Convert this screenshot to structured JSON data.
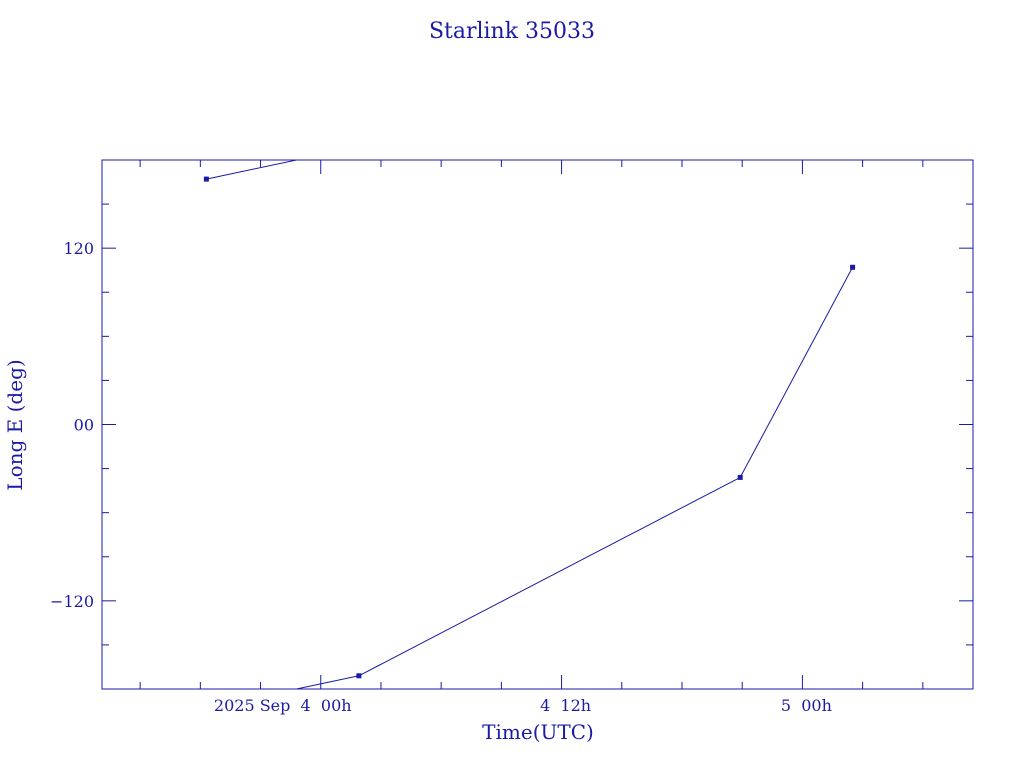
{
  "chart_data": {
    "type": "line",
    "title": "Starlink 35033",
    "xlabel": "Time(UTC)",
    "ylabel": "Long E (deg)",
    "x_tick_labels": [
      "2025 Sep  4  00h",
      "4  12h",
      "5  00h"
    ],
    "x_ticks_hours": [
      0,
      12,
      24
    ],
    "y_tick_labels": [
      "120",
      "00",
      "−120"
    ],
    "y_ticks": [
      120,
      0,
      -120
    ],
    "xlim_hours": [
      -10.9,
      32.5
    ],
    "ylim": [
      -180,
      180
    ],
    "grid": false,
    "color": "#1a1aa6",
    "series": [
      {
        "points": [
          {
            "t_hours": -5.7,
            "lon": 167
          },
          {
            "t_hours": 1.9,
            "lon": -171
          },
          {
            "t_hours": 20.9,
            "lon": -36
          },
          {
            "t_hours": 26.5,
            "lon": 107
          }
        ],
        "wrap_longitude": true
      }
    ]
  }
}
